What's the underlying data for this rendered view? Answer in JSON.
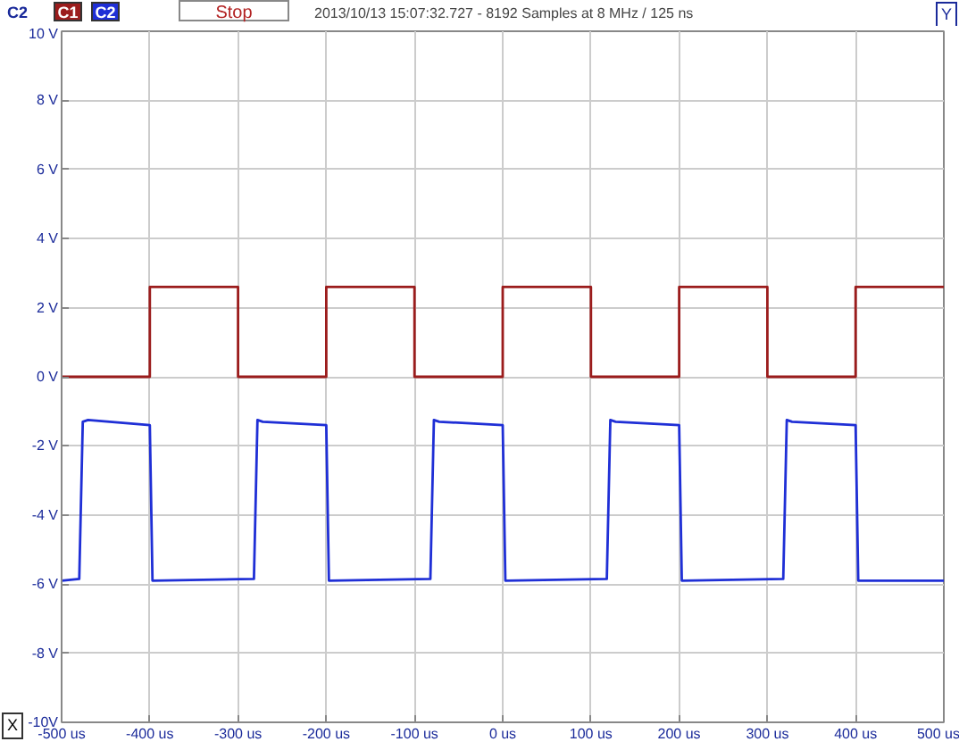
{
  "chart_data": {
    "type": "line",
    "subtitle": "2013/10/13 15:07:32.727 - 8192 Samples at 8 MHz / 125 ns",
    "ylabel": "C2",
    "annotations": [
      "Stop",
      "X",
      "Y"
    ],
    "x": [
      -500,
      -400,
      -400,
      -300,
      -300,
      -200,
      -200,
      -100,
      -100,
      0,
      0,
      100,
      100,
      200,
      200,
      300,
      300,
      400,
      400,
      500
    ],
    "series": [
      {
        "name": "C1",
        "color": "#9b1c1c",
        "values": [
          0,
          0,
          2.6,
          2.6,
          0,
          0,
          2.6,
          2.6,
          0,
          0,
          2.6,
          2.6,
          0,
          0,
          2.6,
          2.6,
          0,
          0,
          2.6,
          2.6
        ]
      },
      {
        "name": "C2",
        "color": "#1f2fd6",
        "x": [
          -500,
          -480,
          -476,
          -470,
          -400,
          -397,
          -282,
          -278,
          -272,
          -200,
          -197,
          -82,
          -78,
          -72,
          0,
          3,
          118,
          122,
          128,
          200,
          203,
          318,
          322,
          328,
          400,
          403,
          500
        ],
        "values": [
          -5.9,
          -5.85,
          -1.3,
          -1.25,
          -1.4,
          -5.9,
          -5.85,
          -1.25,
          -1.3,
          -1.4,
          -5.9,
          -5.85,
          -1.25,
          -1.3,
          -1.4,
          -5.9,
          -5.85,
          -1.25,
          -1.3,
          -1.4,
          -5.9,
          -5.85,
          -1.25,
          -1.3,
          -1.4,
          -5.9,
          -5.9
        ]
      }
    ],
    "xlim": [
      -500,
      500
    ],
    "ylim": [
      -10,
      10
    ],
    "xticks": [
      {
        "value": -500,
        "label": "-500 us"
      },
      {
        "value": -400,
        "label": "-400 us"
      },
      {
        "value": -300,
        "label": "-300 us"
      },
      {
        "value": -200,
        "label": "-200 us"
      },
      {
        "value": -100,
        "label": "-100 us"
      },
      {
        "value": 0,
        "label": "0 us"
      },
      {
        "value": 100,
        "label": "100 us"
      },
      {
        "value": 200,
        "label": "200 us"
      },
      {
        "value": 300,
        "label": "300 us"
      },
      {
        "value": 400,
        "label": "400 us"
      },
      {
        "value": 500,
        "label": "500 us"
      }
    ],
    "yticks": [
      {
        "value": -10,
        "label": "-10V"
      },
      {
        "value": -8,
        "label": "-8 V"
      },
      {
        "value": -6,
        "label": "-6 V"
      },
      {
        "value": -4,
        "label": "-4 V"
      },
      {
        "value": -2,
        "label": "-2 V"
      },
      {
        "value": 0,
        "label": "0 V"
      },
      {
        "value": 2,
        "label": "2 V"
      },
      {
        "value": 4,
        "label": "4 V"
      },
      {
        "value": 6,
        "label": "6 V"
      },
      {
        "value": 8,
        "label": "8 V"
      },
      {
        "value": 10,
        "label": "10 V"
      }
    ],
    "grid": true,
    "legend": "top left",
    "line_style": "solid"
  }
}
